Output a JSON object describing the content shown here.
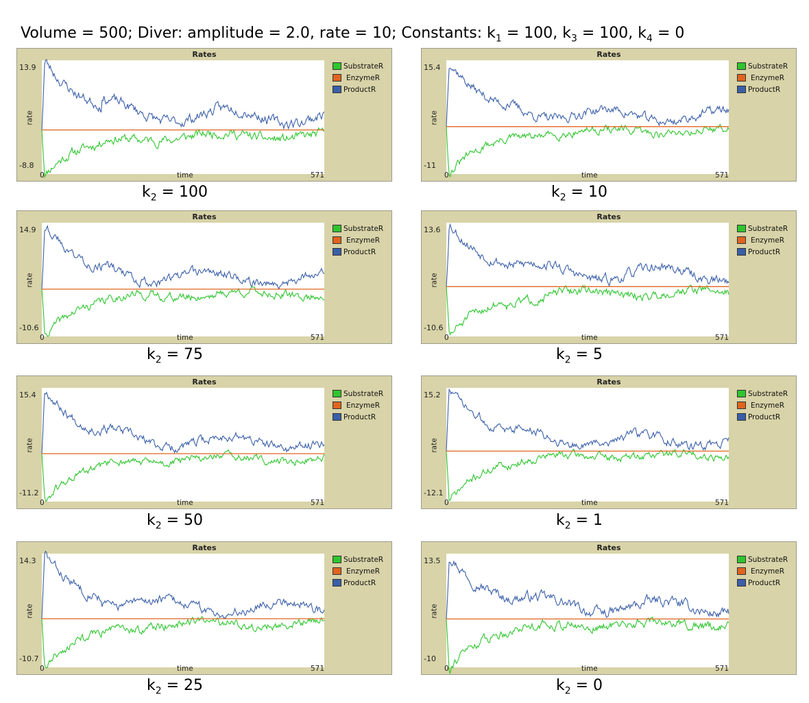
{
  "title": {
    "parts": [
      {
        "t": "Volume = 500; Diver: amplitude = 2.0, rate = 10; Constants: k"
      },
      {
        "sub": "1"
      },
      {
        "t": " = 100, k"
      },
      {
        "sub": "3"
      },
      {
        "t": " = 100, k"
      },
      {
        "sub": "4"
      },
      {
        "t": " = 0"
      }
    ]
  },
  "colors": {
    "substrate": "#2ec52e",
    "enzyme": "#e0641e",
    "product": "#3a5fa8",
    "panel_bg": "#d8d3a8"
  },
  "chart_data": [
    {
      "type": "line",
      "title": "Rates",
      "xlabel": "time",
      "ylabel": "rate",
      "xlim": [
        0,
        571
      ],
      "ylim": [
        -8.8,
        13.9
      ],
      "caption": {
        "k": "k",
        "sub": "2",
        "text": " = 100"
      },
      "series": [
        {
          "name": "SubstrateR",
          "color": "#2ec52e",
          "peak": -8.8,
          "final": -1.2,
          "noise": 1.4,
          "seed": 11
        },
        {
          "name": "EnzymeR",
          "color": "#e0641e",
          "values": [
            0,
            0
          ]
        },
        {
          "name": "ProductR",
          "color": "#3a5fa8",
          "peak": 13.9,
          "final": 2.8,
          "noise": 1.6,
          "seed": 23
        }
      ]
    },
    {
      "type": "line",
      "title": "Rates",
      "xlabel": "time",
      "ylabel": "rate",
      "xlim": [
        0,
        571
      ],
      "ylim": [
        -11,
        15.4
      ],
      "caption": {
        "k": "k",
        "sub": "2",
        "text": " = 10"
      },
      "series": [
        {
          "name": "SubstrateR",
          "color": "#2ec52e",
          "peak": -11,
          "final": -1.0,
          "noise": 1.4,
          "seed": 31
        },
        {
          "name": "EnzymeR",
          "color": "#e0641e",
          "values": [
            0,
            0
          ]
        },
        {
          "name": "ProductR",
          "color": "#3a5fa8",
          "peak": 15.4,
          "final": 2.5,
          "noise": 1.6,
          "seed": 37
        }
      ]
    },
    {
      "type": "line",
      "title": "Rates",
      "xlabel": "time",
      "ylabel": "rate",
      "xlim": [
        0,
        571
      ],
      "ylim": [
        -10.6,
        14.9
      ],
      "caption": {
        "k": "k",
        "sub": "2",
        "text": " = 75"
      },
      "series": [
        {
          "name": "SubstrateR",
          "color": "#2ec52e",
          "peak": -10.6,
          "final": -1.1,
          "noise": 1.4,
          "seed": 41
        },
        {
          "name": "EnzymeR",
          "color": "#e0641e",
          "values": [
            0,
            0
          ]
        },
        {
          "name": "ProductR",
          "color": "#3a5fa8",
          "peak": 14.9,
          "final": 2.4,
          "noise": 1.6,
          "seed": 43
        }
      ]
    },
    {
      "type": "line",
      "title": "Rates",
      "xlabel": "time",
      "ylabel": "rate",
      "xlim": [
        0,
        571
      ],
      "ylim": [
        -10.6,
        13.6
      ],
      "caption": {
        "k": "k",
        "sub": "2",
        "text": " = 5"
      },
      "series": [
        {
          "name": "SubstrateR",
          "color": "#2ec52e",
          "peak": -10.6,
          "final": -1.3,
          "noise": 1.4,
          "seed": 51
        },
        {
          "name": "EnzymeR",
          "color": "#e0641e",
          "values": [
            0,
            0
          ]
        },
        {
          "name": "ProductR",
          "color": "#3a5fa8",
          "peak": 13.6,
          "final": 2.7,
          "noise": 1.6,
          "seed": 53
        }
      ]
    },
    {
      "type": "line",
      "title": "Rates",
      "xlabel": "time",
      "ylabel": "rate",
      "xlim": [
        0,
        571
      ],
      "ylim": [
        -11.2,
        15.4
      ],
      "caption": {
        "k": "k",
        "sub": "2",
        "text": " = 50"
      },
      "series": [
        {
          "name": "SubstrateR",
          "color": "#2ec52e",
          "peak": -11.2,
          "final": -1.2,
          "noise": 1.4,
          "seed": 61
        },
        {
          "name": "EnzymeR",
          "color": "#e0641e",
          "values": [
            0,
            0
          ]
        },
        {
          "name": "ProductR",
          "color": "#3a5fa8",
          "peak": 15.4,
          "final": 2.6,
          "noise": 1.6,
          "seed": 67
        }
      ]
    },
    {
      "type": "line",
      "title": "Rates",
      "xlabel": "time",
      "ylabel": "rate",
      "xlim": [
        0,
        571
      ],
      "ylim": [
        -12.1,
        15.2
      ],
      "caption": {
        "k": "k",
        "sub": "2",
        "text": " = 1"
      },
      "series": [
        {
          "name": "SubstrateR",
          "color": "#2ec52e",
          "peak": -12.1,
          "final": -1.0,
          "noise": 1.4,
          "seed": 71
        },
        {
          "name": "EnzymeR",
          "color": "#e0641e",
          "values": [
            0,
            0
          ]
        },
        {
          "name": "ProductR",
          "color": "#3a5fa8",
          "peak": 15.2,
          "final": 2.5,
          "noise": 1.6,
          "seed": 73
        }
      ]
    },
    {
      "type": "line",
      "title": "Rates",
      "xlabel": "time",
      "ylabel": "rate",
      "xlim": [
        0,
        571
      ],
      "ylim": [
        -10.7,
        14.3
      ],
      "caption": {
        "k": "k",
        "sub": "2",
        "text": " = 25"
      },
      "series": [
        {
          "name": "SubstrateR",
          "color": "#2ec52e",
          "peak": -10.7,
          "final": -1.1,
          "noise": 1.4,
          "seed": 81
        },
        {
          "name": "EnzymeR",
          "color": "#e0641e",
          "values": [
            0,
            0
          ]
        },
        {
          "name": "ProductR",
          "color": "#3a5fa8",
          "peak": 14.3,
          "final": 2.5,
          "noise": 1.6,
          "seed": 83
        }
      ]
    },
    {
      "type": "line",
      "title": "Rates",
      "xlabel": "time",
      "ylabel": "rate",
      "xlim": [
        0,
        571
      ],
      "ylim": [
        -10,
        13.5
      ],
      "caption": {
        "k": "k",
        "sub": "2",
        "text": " = 0"
      },
      "series": [
        {
          "name": "SubstrateR",
          "color": "#2ec52e",
          "peak": -10,
          "final": -1.0,
          "noise": 1.4,
          "seed": 91
        },
        {
          "name": "EnzymeR",
          "color": "#e0641e",
          "values": [
            0,
            0
          ]
        },
        {
          "name": "ProductR",
          "color": "#3a5fa8",
          "peak": 13.5,
          "final": 2.4,
          "noise": 1.6,
          "seed": 97
        }
      ]
    }
  ]
}
